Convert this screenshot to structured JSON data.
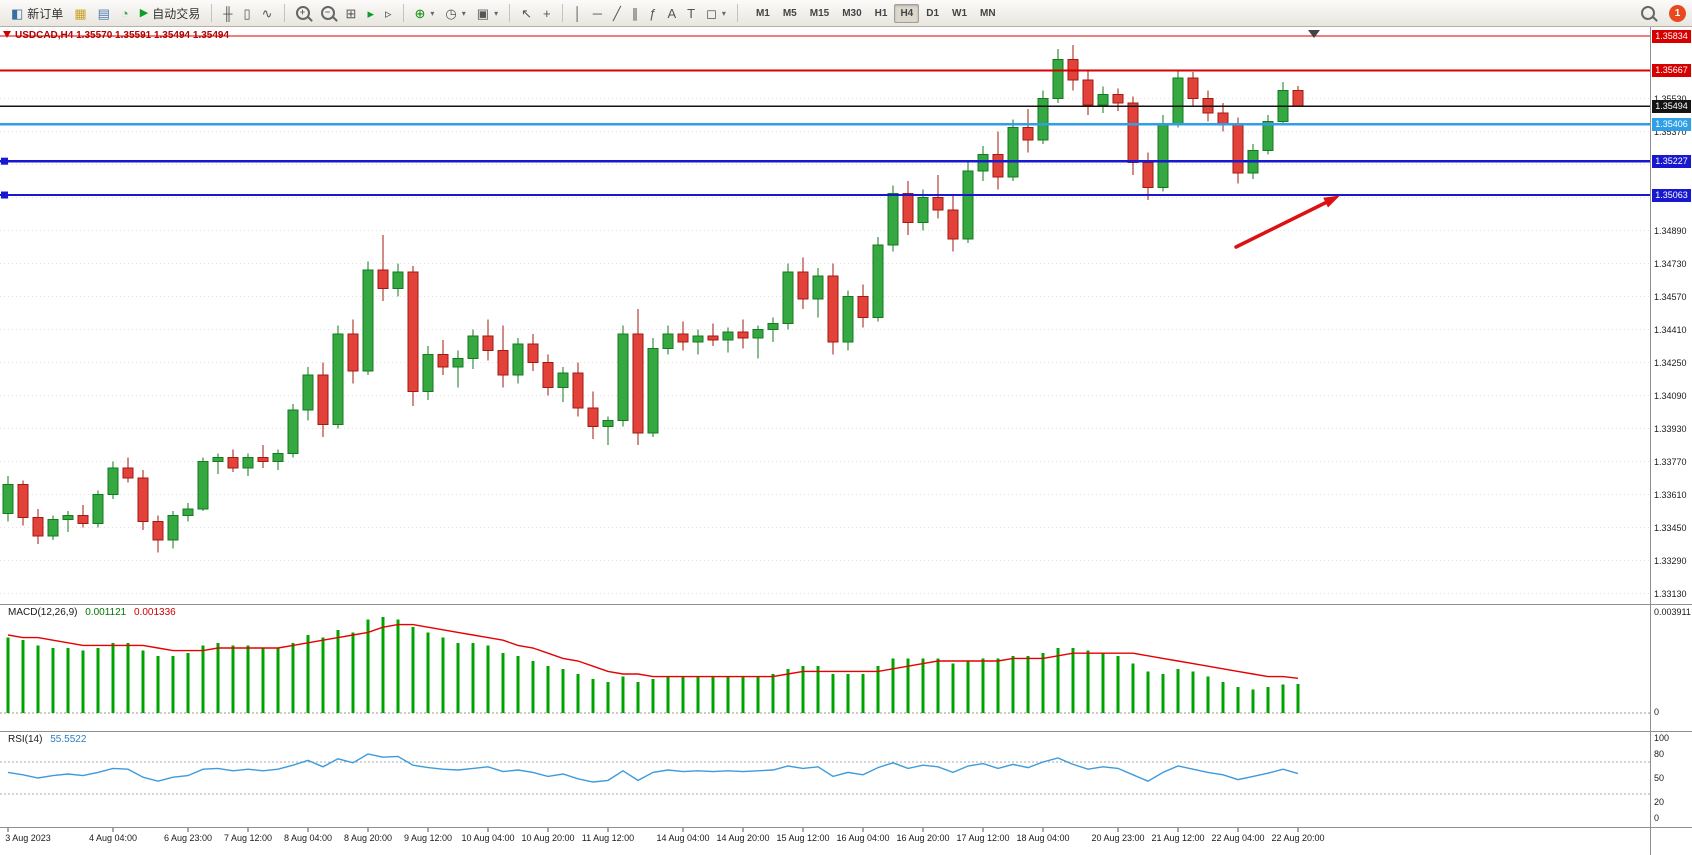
{
  "toolbar": {
    "new_order_label": "新订单",
    "auto_trading_label": "自动交易",
    "icons": {
      "new_order": "◧",
      "charts": "▦",
      "profiles": "▤",
      "history": "◔",
      "play": "▶",
      "bars_mode": "╫",
      "candles_mode": "▯",
      "line_mode": "∿",
      "zoom_in": "+",
      "zoom_out": "−",
      "tile_windows": "⊞",
      "auto_scroll": "▸",
      "chart_shift": "▹",
      "indicators": "⊕",
      "periods": "◷",
      "templates": "▣",
      "cursor": "↖",
      "crosshair": "+",
      "vline": "│",
      "hline": "─",
      "trendline": "╱",
      "channel": "∥",
      "fibonacci": "ƒ",
      "text": "A",
      "label": "T",
      "shapes": "◻",
      "dropdown": "▾"
    },
    "timeframes": [
      "M1",
      "M5",
      "M15",
      "M30",
      "H1",
      "H4",
      "D1",
      "W1",
      "MN"
    ],
    "active_timeframe": "H4",
    "notification_count": "1"
  },
  "chart_data": {
    "type": "candlestick",
    "symbol": "USDCAD",
    "timeframe": "H4",
    "title": "USDCAD,H4 1.35570 1.35591 1.35494 1.35494",
    "current_bar": {
      "open": "1.35570",
      "high": "1.35591",
      "low": "1.35494",
      "close": "1.35494"
    },
    "price_axis_labels": [
      "1.35530",
      "1.35370",
      "1.35210",
      "1.35050",
      "1.34890",
      "1.34730",
      "1.34570",
      "1.34410",
      "1.34250",
      "1.34090",
      "1.33930",
      "1.33770",
      "1.33610",
      "1.33450",
      "1.33290",
      "1.33130"
    ],
    "levels": [
      {
        "label": "1.35834",
        "price": 1.35834,
        "color": "#d60000",
        "width": 1.2,
        "handle": false,
        "current": false
      },
      {
        "label": "1.35667",
        "price": 1.35667,
        "color": "#d60000",
        "width": 2.2,
        "handle": false,
        "current": false
      },
      {
        "label": "1.35494",
        "price": 1.35494,
        "color": "#141414",
        "width": 1.4,
        "handle": false,
        "current": true
      },
      {
        "label": "1.35406",
        "price": 1.35406,
        "color": "#2f9fe6",
        "width": 2.2,
        "handle": false,
        "current": false
      },
      {
        "label": "1.35227",
        "price": 1.35227,
        "color": "#1818cf",
        "width": 2.2,
        "handle": true,
        "current": false
      },
      {
        "label": "1.35063",
        "price": 1.35063,
        "color": "#1818cf",
        "width": 2.2,
        "handle": true,
        "current": false
      }
    ],
    "candles_ohlc": [
      [
        1.3352,
        1.337,
        1.3348,
        1.3366
      ],
      [
        1.3366,
        1.3368,
        1.3346,
        1.335
      ],
      [
        1.335,
        1.3354,
        1.3337,
        1.3341
      ],
      [
        1.3341,
        1.3351,
        1.3339,
        1.3349
      ],
      [
        1.3349,
        1.3353,
        1.3343,
        1.3351
      ],
      [
        1.3351,
        1.3356,
        1.3345,
        1.3347
      ],
      [
        1.3347,
        1.3363,
        1.3345,
        1.3361
      ],
      [
        1.3361,
        1.3377,
        1.3359,
        1.3374
      ],
      [
        1.3374,
        1.3379,
        1.3367,
        1.3369
      ],
      [
        1.3369,
        1.3373,
        1.3344,
        1.3348
      ],
      [
        1.3348,
        1.3351,
        1.3333,
        1.3339
      ],
      [
        1.3339,
        1.3353,
        1.3335,
        1.3351
      ],
      [
        1.3351,
        1.3357,
        1.3348,
        1.3354
      ],
      [
        1.3354,
        1.3379,
        1.3353,
        1.3377
      ],
      [
        1.3377,
        1.3381,
        1.3371,
        1.3379
      ],
      [
        1.3379,
        1.3383,
        1.3372,
        1.3374
      ],
      [
        1.3374,
        1.3381,
        1.337,
        1.3379
      ],
      [
        1.3379,
        1.3385,
        1.3374,
        1.3377
      ],
      [
        1.3377,
        1.3383,
        1.3373,
        1.3381
      ],
      [
        1.3381,
        1.3405,
        1.3379,
        1.3402
      ],
      [
        1.3402,
        1.3423,
        1.3397,
        1.3419
      ],
      [
        1.3419,
        1.3425,
        1.3389,
        1.3395
      ],
      [
        1.3395,
        1.3443,
        1.3393,
        1.3439
      ],
      [
        1.3439,
        1.3446,
        1.3415,
        1.3421
      ],
      [
        1.3421,
        1.3474,
        1.3419,
        1.347
      ],
      [
        1.347,
        1.3487,
        1.3455,
        1.3461
      ],
      [
        1.3461,
        1.3473,
        1.3457,
        1.3469
      ],
      [
        1.3469,
        1.3472,
        1.3404,
        1.3411
      ],
      [
        1.3411,
        1.3433,
        1.3407,
        1.3429
      ],
      [
        1.3429,
        1.3436,
        1.3419,
        1.3423
      ],
      [
        1.3423,
        1.3431,
        1.3413,
        1.3427
      ],
      [
        1.3427,
        1.3441,
        1.3422,
        1.3438
      ],
      [
        1.3438,
        1.3446,
        1.3426,
        1.3431
      ],
      [
        1.3431,
        1.3443,
        1.3413,
        1.3419
      ],
      [
        1.3419,
        1.3437,
        1.3415,
        1.3434
      ],
      [
        1.3434,
        1.3439,
        1.3421,
        1.3425
      ],
      [
        1.3425,
        1.3429,
        1.3409,
        1.3413
      ],
      [
        1.3413,
        1.3423,
        1.3406,
        1.342
      ],
      [
        1.342,
        1.3425,
        1.3399,
        1.3403
      ],
      [
        1.3403,
        1.3411,
        1.3388,
        1.3394
      ],
      [
        1.3394,
        1.3399,
        1.3385,
        1.3397
      ],
      [
        1.3397,
        1.3443,
        1.3394,
        1.3439
      ],
      [
        1.3439,
        1.3451,
        1.3385,
        1.3391
      ],
      [
        1.3391,
        1.3437,
        1.3389,
        1.3432
      ],
      [
        1.3432,
        1.3443,
        1.3429,
        1.3439
      ],
      [
        1.3439,
        1.3445,
        1.3431,
        1.3435
      ],
      [
        1.3435,
        1.3441,
        1.3429,
        1.3438
      ],
      [
        1.3438,
        1.3444,
        1.3433,
        1.3436
      ],
      [
        1.3436,
        1.3442,
        1.343,
        1.344
      ],
      [
        1.344,
        1.3446,
        1.3432,
        1.3437
      ],
      [
        1.3437,
        1.3443,
        1.3427,
        1.3441
      ],
      [
        1.3441,
        1.3447,
        1.3435,
        1.3444
      ],
      [
        1.3444,
        1.3473,
        1.3441,
        1.3469
      ],
      [
        1.3469,
        1.3476,
        1.3451,
        1.3456
      ],
      [
        1.3456,
        1.3471,
        1.3447,
        1.3467
      ],
      [
        1.3467,
        1.3473,
        1.3429,
        1.3435
      ],
      [
        1.3435,
        1.346,
        1.3431,
        1.3457
      ],
      [
        1.3457,
        1.3463,
        1.3442,
        1.3447
      ],
      [
        1.3447,
        1.3486,
        1.3445,
        1.3482
      ],
      [
        1.3482,
        1.3511,
        1.3479,
        1.3507
      ],
      [
        1.3507,
        1.3513,
        1.3487,
        1.3493
      ],
      [
        1.3493,
        1.3509,
        1.3489,
        1.3505
      ],
      [
        1.3505,
        1.3516,
        1.3495,
        1.3499
      ],
      [
        1.3499,
        1.3506,
        1.3479,
        1.3485
      ],
      [
        1.3485,
        1.3522,
        1.3483,
        1.3518
      ],
      [
        1.3518,
        1.353,
        1.3513,
        1.3526
      ],
      [
        1.3526,
        1.3537,
        1.3509,
        1.3515
      ],
      [
        1.3515,
        1.3543,
        1.3513,
        1.3539
      ],
      [
        1.3539,
        1.3548,
        1.3527,
        1.3533
      ],
      [
        1.3533,
        1.3557,
        1.3531,
        1.3553
      ],
      [
        1.3553,
        1.3577,
        1.3551,
        1.3572
      ],
      [
        1.3572,
        1.3579,
        1.3557,
        1.3562
      ],
      [
        1.3562,
        1.3567,
        1.3545,
        1.355
      ],
      [
        1.355,
        1.3559,
        1.3546,
        1.3555
      ],
      [
        1.3555,
        1.3558,
        1.3547,
        1.3551
      ],
      [
        1.3551,
        1.3554,
        1.3516,
        1.3522
      ],
      [
        1.3522,
        1.3527,
        1.3504,
        1.351
      ],
      [
        1.351,
        1.3545,
        1.3508,
        1.3541
      ],
      [
        1.3541,
        1.3567,
        1.3539,
        1.3563
      ],
      [
        1.3563,
        1.3566,
        1.3549,
        1.3553
      ],
      [
        1.3553,
        1.3557,
        1.3542,
        1.3546
      ],
      [
        1.3546,
        1.3551,
        1.3537,
        1.3541
      ],
      [
        1.3541,
        1.3544,
        1.3512,
        1.3517
      ],
      [
        1.3517,
        1.3531,
        1.3514,
        1.3528
      ],
      [
        1.3528,
        1.3545,
        1.3526,
        1.3542
      ],
      [
        1.3542,
        1.3561,
        1.354,
        1.3557
      ],
      [
        1.3557,
        1.35591,
        1.35494,
        1.35494
      ]
    ],
    "time_labels": [
      "3 Aug 2023",
      "4 Aug 04:00",
      "6 Aug 23:00",
      "7 Aug 12:00",
      "8 Aug 04:00",
      "8 Aug 20:00",
      "9 Aug 12:00",
      "10 Aug 04:00",
      "10 Aug 20:00",
      "11 Aug 12:00",
      "14 Aug 04:00",
      "14 Aug 20:00",
      "15 Aug 12:00",
      "16 Aug 04:00",
      "16 Aug 20:00",
      "17 Aug 12:00",
      "18 Aug 04:00",
      "20 Aug 23:00",
      "21 Aug 12:00",
      "22 Aug 04:00",
      "22 Aug 20:00"
    ],
    "label_bar_index": [
      0,
      7,
      12,
      16,
      20,
      24,
      28,
      32,
      36,
      40,
      45,
      49,
      53,
      57,
      61,
      65,
      69,
      74,
      78,
      82,
      86
    ],
    "indicators": {
      "macd": {
        "name": "MACD(12,26,9)",
        "value_main": "0.001121",
        "value_signal": "0.001336",
        "axis_max_label": "0.003911",
        "axis_min_label": "0",
        "histogram": [
          0.0029,
          0.0028,
          0.0026,
          0.0025,
          0.0025,
          0.0024,
          0.0025,
          0.0027,
          0.0027,
          0.0024,
          0.0022,
          0.0022,
          0.0023,
          0.0026,
          0.0027,
          0.0026,
          0.0026,
          0.0025,
          0.0025,
          0.0027,
          0.003,
          0.0029,
          0.0032,
          0.0031,
          0.0036,
          0.0037,
          0.0036,
          0.0033,
          0.0031,
          0.0029,
          0.0027,
          0.0027,
          0.0026,
          0.0023,
          0.0022,
          0.002,
          0.0018,
          0.0017,
          0.0015,
          0.0013,
          0.0012,
          0.0014,
          0.0012,
          0.0013,
          0.0014,
          0.0014,
          0.0014,
          0.0014,
          0.0014,
          0.0014,
          0.0014,
          0.0015,
          0.0017,
          0.0018,
          0.0018,
          0.0015,
          0.0015,
          0.0015,
          0.0018,
          0.0021,
          0.0021,
          0.0021,
          0.0021,
          0.0019,
          0.002,
          0.0021,
          0.0021,
          0.0022,
          0.0022,
          0.0023,
          0.0025,
          0.0025,
          0.0024,
          0.0023,
          0.0022,
          0.0019,
          0.0016,
          0.0015,
          0.0017,
          0.0016,
          0.0014,
          0.0012,
          0.001,
          0.0009,
          0.001,
          0.0011,
          0.001121
        ],
        "signal": [
          0.003,
          0.0029,
          0.0029,
          0.0028,
          0.0027,
          0.0026,
          0.0026,
          0.0026,
          0.0026,
          0.0026,
          0.0025,
          0.0024,
          0.0024,
          0.0024,
          0.0025,
          0.0025,
          0.0025,
          0.0025,
          0.0025,
          0.0026,
          0.0027,
          0.0028,
          0.0029,
          0.003,
          0.0031,
          0.0033,
          0.0034,
          0.0034,
          0.0033,
          0.0032,
          0.0031,
          0.003,
          0.0029,
          0.0028,
          0.0026,
          0.0025,
          0.0023,
          0.0021,
          0.002,
          0.0018,
          0.0016,
          0.0015,
          0.0015,
          0.0014,
          0.0014,
          0.0014,
          0.0014,
          0.0014,
          0.0014,
          0.0014,
          0.0014,
          0.0014,
          0.0015,
          0.0016,
          0.0016,
          0.0016,
          0.0016,
          0.0016,
          0.0016,
          0.0017,
          0.0018,
          0.0019,
          0.002,
          0.002,
          0.002,
          0.002,
          0.002,
          0.0021,
          0.0021,
          0.0021,
          0.0022,
          0.0023,
          0.0023,
          0.0023,
          0.0023,
          0.0023,
          0.0022,
          0.0021,
          0.002,
          0.0019,
          0.0018,
          0.0017,
          0.0016,
          0.0015,
          0.0014,
          0.0014,
          0.001336
        ]
      },
      "rsi": {
        "name": "RSI(14)",
        "value": "55.5522",
        "axis_labels": [
          "100",
          "80",
          "50",
          "20",
          "0"
        ],
        "levels": [
          70,
          30
        ],
        "values": [
          57,
          54,
          50,
          53,
          55,
          53,
          57,
          62,
          61,
          51,
          46,
          51,
          53,
          61,
          62,
          59,
          61,
          59,
          61,
          66,
          72,
          64,
          74,
          69,
          80,
          76,
          77,
          66,
          63,
          61,
          60,
          62,
          64,
          58,
          60,
          57,
          52,
          55,
          49,
          45,
          47,
          59,
          47,
          57,
          60,
          58,
          59,
          58,
          59,
          58,
          59,
          60,
          65,
          62,
          64,
          52,
          57,
          54,
          63,
          69,
          62,
          66,
          64,
          57,
          65,
          68,
          62,
          67,
          63,
          70,
          75,
          67,
          61,
          64,
          62,
          54,
          46,
          57,
          65,
          61,
          57,
          54,
          48,
          52,
          56,
          61,
          55.55
        ]
      }
    },
    "colors": {
      "bull": "#35a842",
      "bull_border": "#147a20",
      "bear": "#e2423a",
      "bear_border": "#a11b12",
      "macd_histogram": "#00a400",
      "macd_signal": "#e60000",
      "rsi_line": "#3d9bdc",
      "grid": "#e2e2e2",
      "arrow": "#dd1111"
    }
  }
}
